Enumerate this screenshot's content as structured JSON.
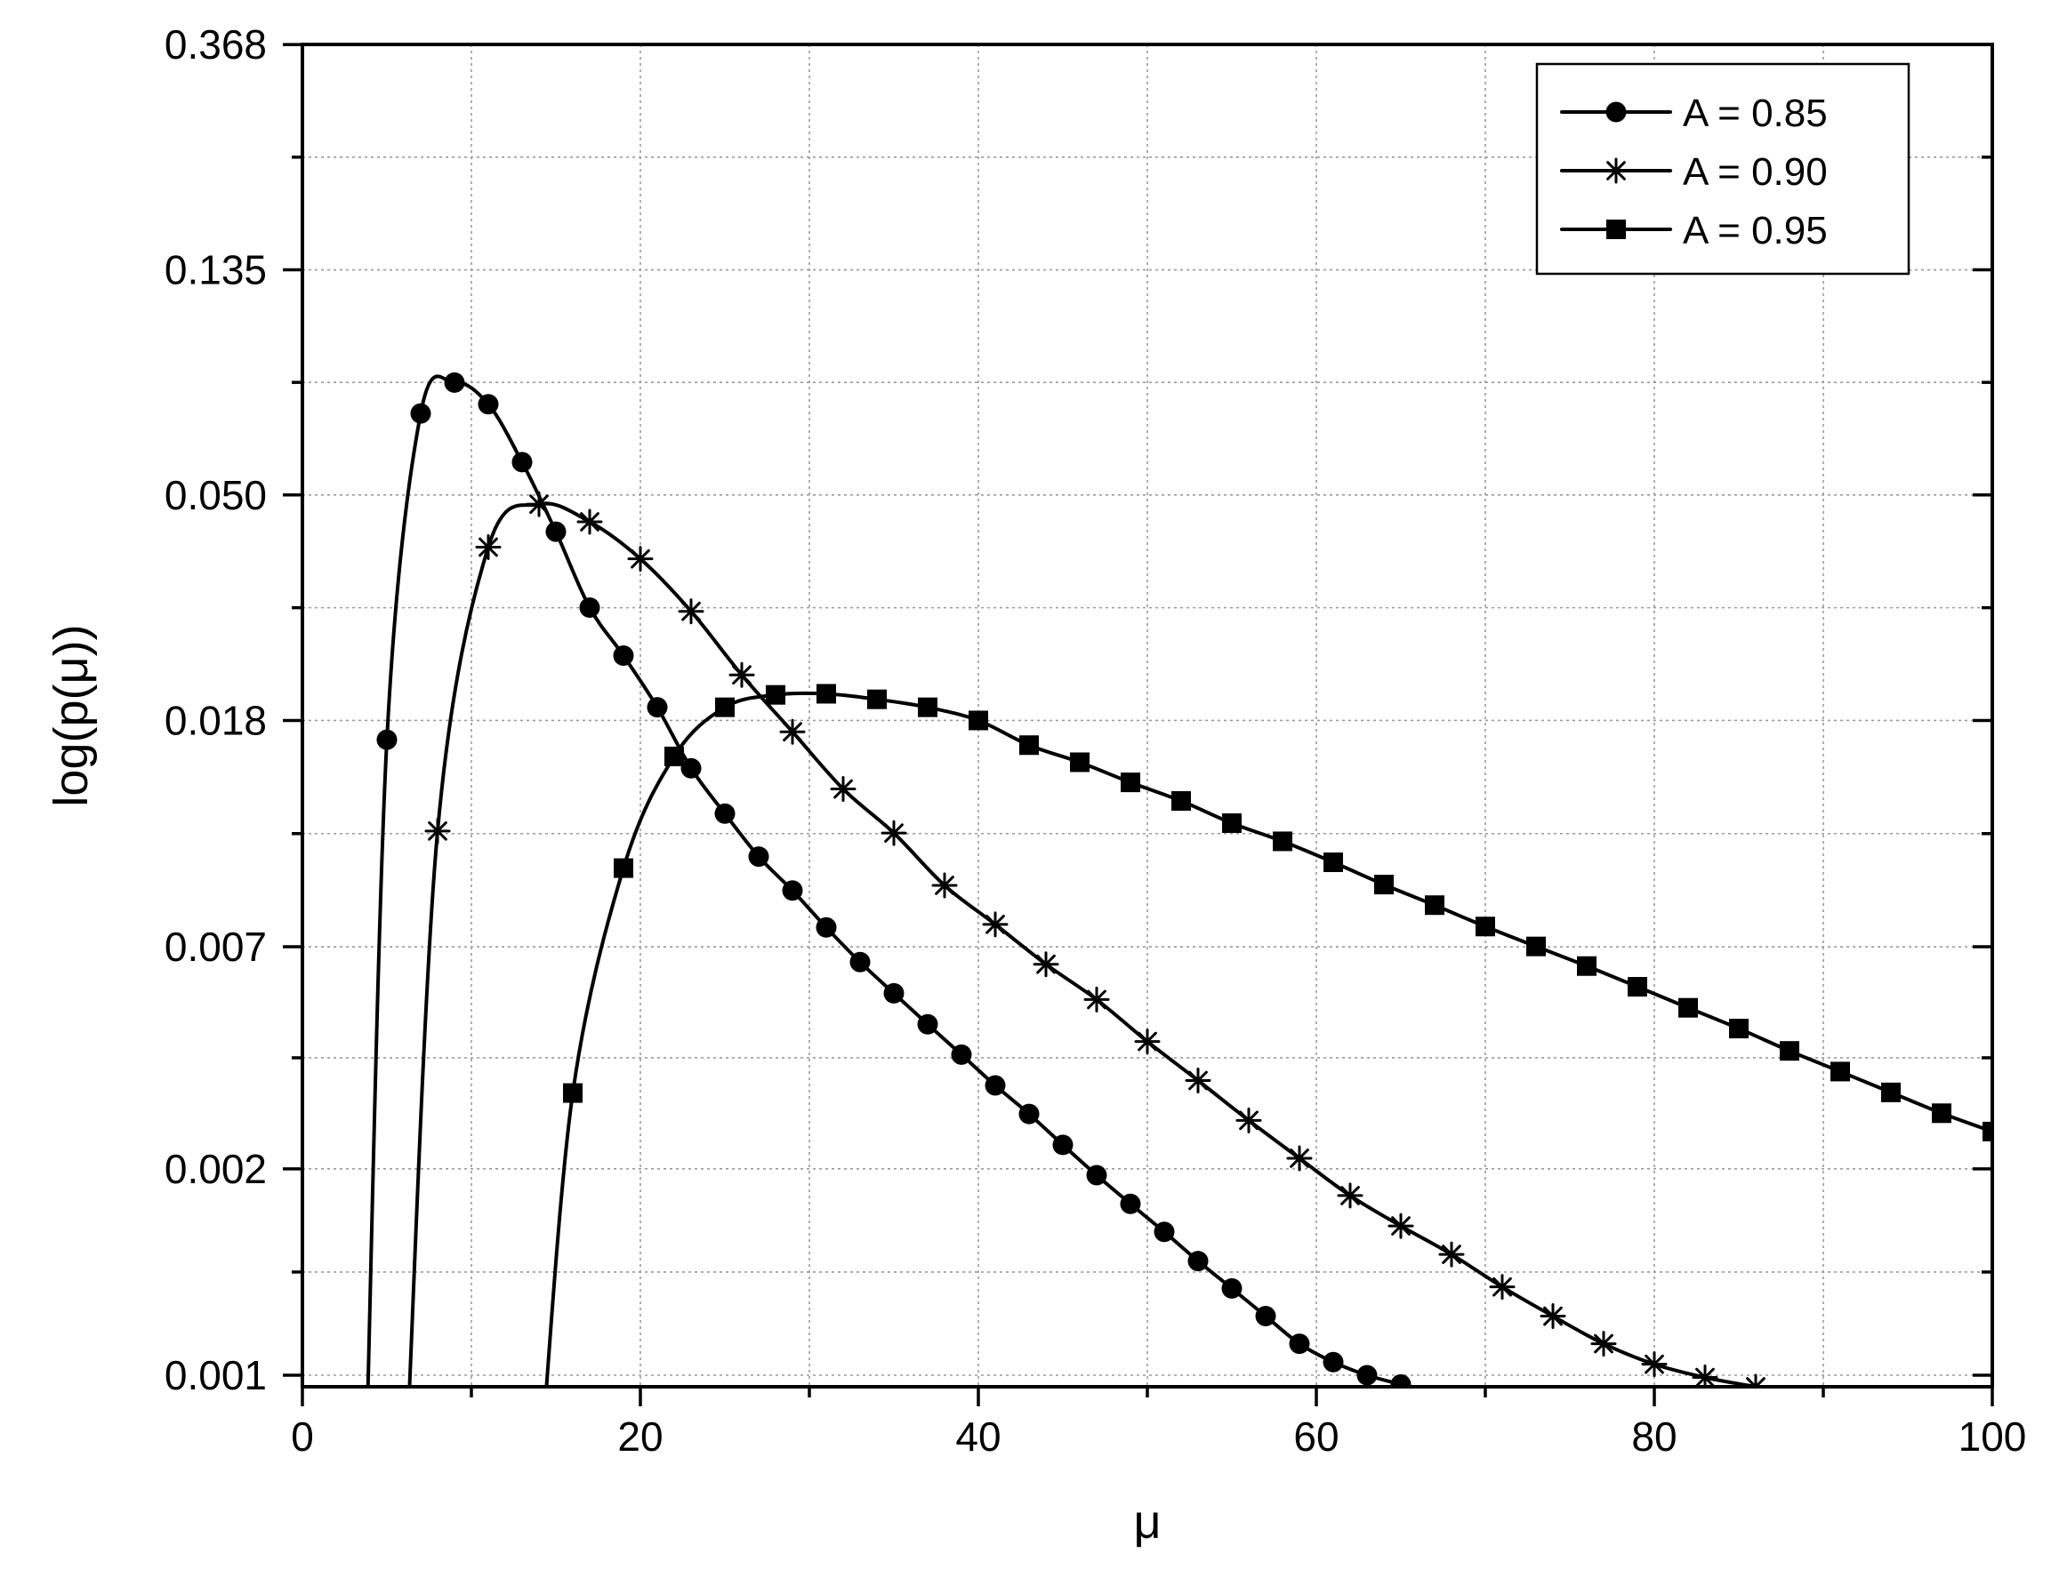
{
  "chart_data": {
    "type": "line",
    "title": "",
    "xlabel": "μ",
    "ylabel": "log(p(μ))",
    "xlim": [
      0,
      100
    ],
    "ylim": [
      0.00095,
      0.368
    ],
    "yscale": "log",
    "xticks": [
      "0",
      "20",
      "40",
      "60",
      "80",
      "100"
    ],
    "xtick_values": [
      0,
      20,
      40,
      60,
      80,
      100
    ],
    "yticks": [
      "0.001",
      "0.002",
      "0.007",
      "0.018",
      "0.050",
      "0.135",
      "0.368"
    ],
    "ytick_values": [
      0.001,
      0.0025,
      0.0067,
      0.0183,
      0.0498,
      0.1353,
      0.3679
    ],
    "grid": true,
    "legend_position": "top-right",
    "series": [
      {
        "name": "A = 0.85",
        "marker": "circle",
        "x": [
          5,
          7,
          9,
          11,
          13,
          15,
          17,
          19,
          21,
          23,
          25,
          27,
          29,
          31,
          33,
          35,
          37,
          39,
          41,
          43,
          45,
          47,
          49,
          51,
          53,
          55,
          57,
          59,
          61,
          63,
          65
        ],
        "y": [
          0.0168,
          0.0715,
          0.082,
          0.0745,
          0.0576,
          0.0423,
          0.0302,
          0.0244,
          0.0194,
          0.0148,
          0.0121,
          0.01,
          0.0086,
          0.0073,
          0.00626,
          0.00545,
          0.00475,
          0.00415,
          0.00362,
          0.00319,
          0.00278,
          0.00243,
          0.00214,
          0.00189,
          0.00166,
          0.00147,
          0.0013,
          0.00115,
          0.00106,
          0.001,
          0.00096
        ]
      },
      {
        "name": "A = 0.90",
        "marker": "star",
        "x": [
          8,
          11,
          14,
          17,
          20,
          23,
          26,
          29,
          32,
          35,
          38,
          41,
          44,
          47,
          50,
          53,
          56,
          59,
          62,
          65,
          68,
          71,
          74,
          77,
          80,
          83,
          86
        ],
        "y": [
          0.0112,
          0.0395,
          0.0478,
          0.0442,
          0.0375,
          0.0297,
          0.0224,
          0.0174,
          0.0135,
          0.0111,
          0.0088,
          0.0074,
          0.0062,
          0.0053,
          0.0044,
          0.0037,
          0.0031,
          0.00262,
          0.00222,
          0.00194,
          0.00171,
          0.00148,
          0.0013,
          0.00115,
          0.00105,
          0.00099,
          0.00095
        ]
      },
      {
        "name": "A = 0.95",
        "marker": "square",
        "x": [
          16,
          19,
          22,
          25,
          28,
          31,
          34,
          37,
          40,
          43,
          46,
          49,
          52,
          55,
          58,
          61,
          64,
          67,
          70,
          73,
          76,
          79,
          82,
          85,
          88,
          91,
          94,
          97,
          100
        ],
        "y": [
          0.0035,
          0.0095,
          0.0156,
          0.0194,
          0.0205,
          0.0206,
          0.0201,
          0.0194,
          0.0183,
          0.0164,
          0.0152,
          0.0139,
          0.0128,
          0.0116,
          0.0107,
          0.00975,
          0.00883,
          0.00806,
          0.00733,
          0.00671,
          0.00615,
          0.00561,
          0.00511,
          0.00466,
          0.00422,
          0.00385,
          0.00351,
          0.0032,
          0.00295
        ]
      }
    ]
  }
}
